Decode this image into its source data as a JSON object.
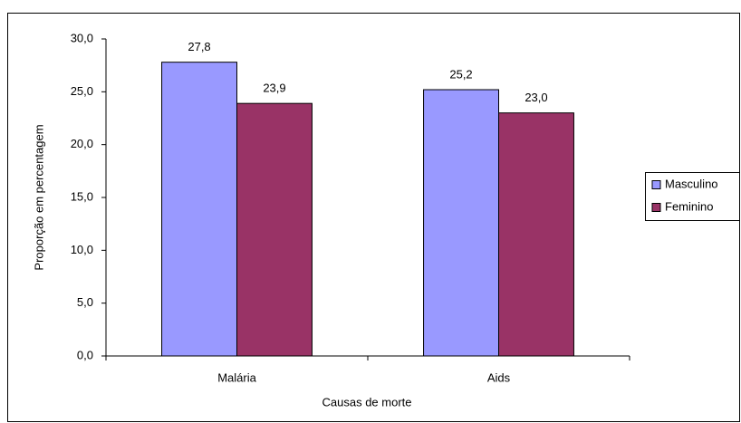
{
  "chart_data": {
    "type": "bar",
    "x_label": "Causas de morte",
    "y_label": "Proporção em percentagem",
    "categories": [
      "Malária",
      "Aids"
    ],
    "series": [
      {
        "name": "Masculino",
        "color": "#9999ff",
        "values": [
          27.8,
          25.2
        ],
        "value_labels": [
          "27,8",
          "25,2"
        ]
      },
      {
        "name": "Feminino",
        "color": "#993366",
        "values": [
          23.9,
          23.0
        ],
        "value_labels": [
          "23,9",
          "23,0"
        ]
      }
    ],
    "ylim": [
      0,
      30
    ],
    "yticks": [
      {
        "value": 0,
        "label": "0,0"
      },
      {
        "value": 5,
        "label": "5,0"
      },
      {
        "value": 10,
        "label": "10,0"
      },
      {
        "value": 15,
        "label": "15,0"
      },
      {
        "value": 20,
        "label": "20,0"
      },
      {
        "value": 25,
        "label": "25,0"
      },
      {
        "value": 30,
        "label": "30,0"
      }
    ],
    "legend": "right"
  }
}
